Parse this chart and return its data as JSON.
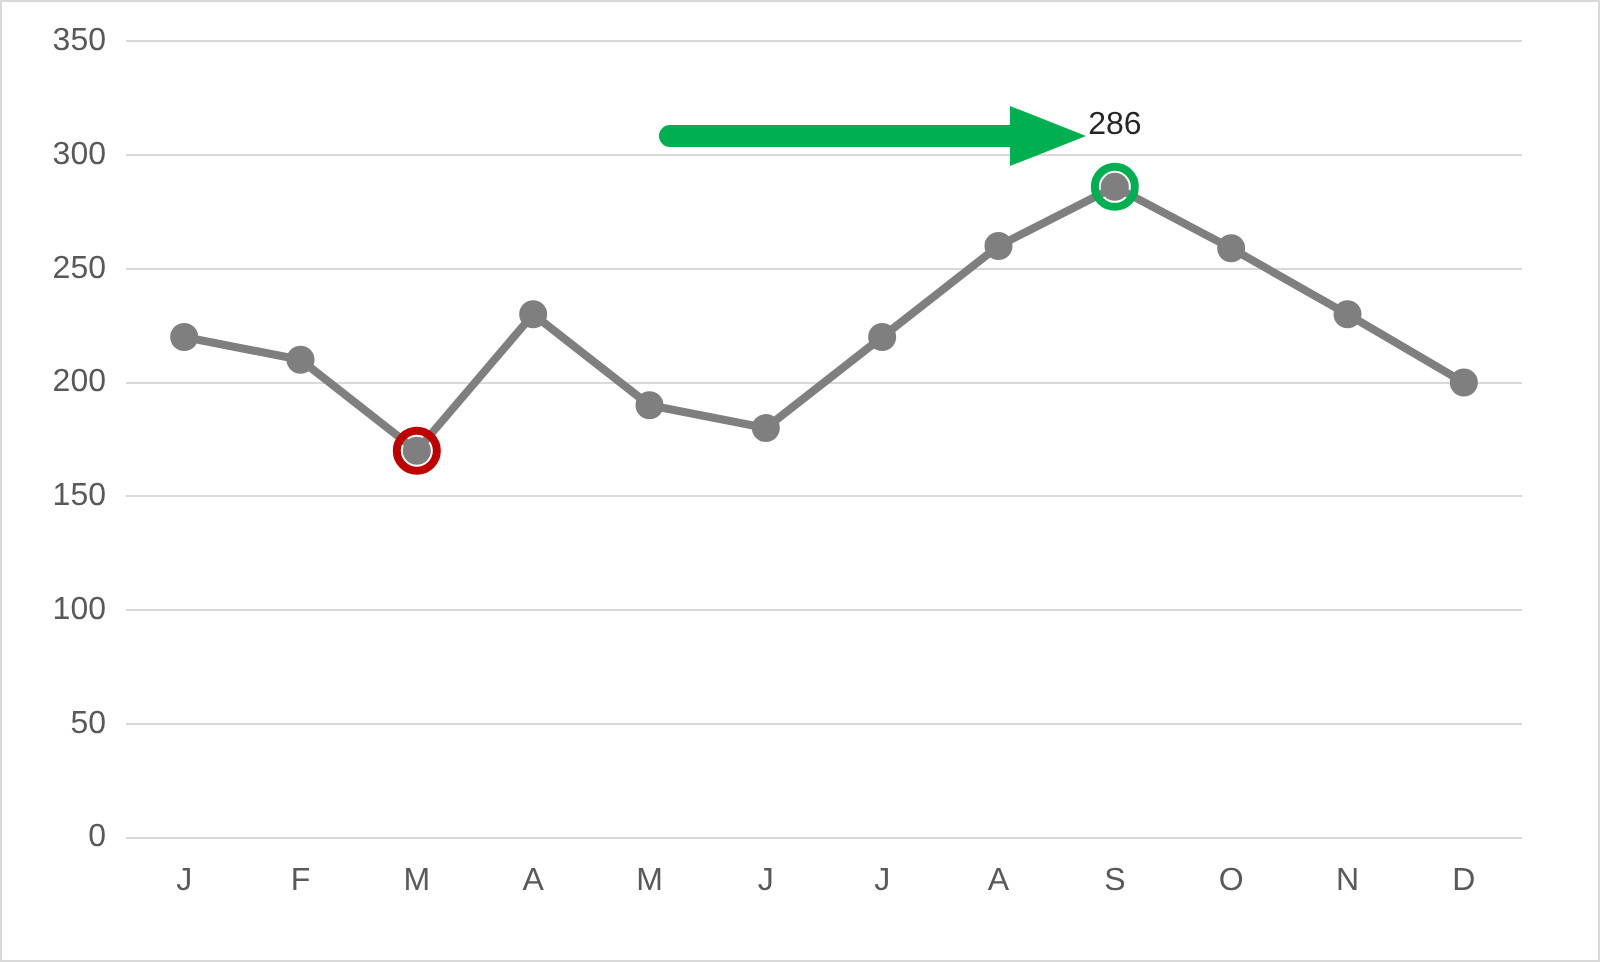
{
  "chart_data": {
    "type": "line",
    "categories": [
      "J",
      "F",
      "M",
      "A",
      "M",
      "J",
      "J",
      "A",
      "S",
      "O",
      "N",
      "D"
    ],
    "series": [
      {
        "color": "#7f7f7f",
        "values": [
          220,
          210,
          170,
          230,
          190,
          180,
          220,
          260,
          286,
          259,
          230,
          200
        ]
      },
      {
        "type": "scatter",
        "color": "#c00000",
        "values": [
          null,
          null,
          170,
          null,
          null,
          null,
          null,
          null,
          null,
          null,
          null,
          null
        ]
      },
      {
        "type": "scatter",
        "color": "#00b050",
        "values": [
          null,
          null,
          null,
          null,
          null,
          null,
          null,
          null,
          286,
          null,
          null,
          null
        ]
      }
    ],
    "annotations": [
      {
        "text": "286",
        "x": "S",
        "y": 286
      }
    ],
    "ylim": [
      0,
      350
    ],
    "yticks": [
      0,
      50,
      100,
      150,
      200,
      250,
      300,
      350
    ],
    "grid": "y",
    "legend": false,
    "marker": "circle",
    "line_style": "solid"
  }
}
